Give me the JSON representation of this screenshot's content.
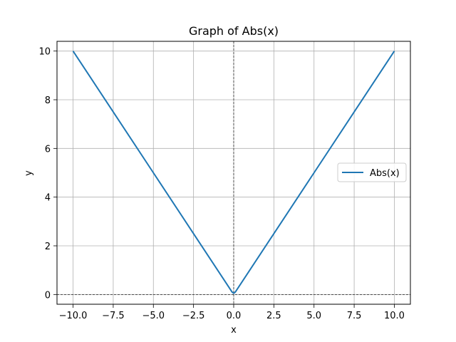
{
  "chart_data": {
    "type": "line",
    "title": "Graph of Abs(x)",
    "xlabel": "x",
    "ylabel": "y",
    "xlim": [
      -11,
      11
    ],
    "ylim": [
      -0.4,
      10.4
    ],
    "xticks": [
      -10.0,
      -7.5,
      -5.0,
      -2.5,
      0.0,
      2.5,
      5.0,
      7.5,
      10.0
    ],
    "xtick_labels": [
      "−10.0",
      "−7.5",
      "−5.0",
      "−2.5",
      "0.0",
      "2.5",
      "5.0",
      "7.5",
      "10.0"
    ],
    "yticks": [
      0,
      2,
      4,
      6,
      8,
      10
    ],
    "ytick_labels": [
      "0",
      "2",
      "4",
      "6",
      "8",
      "10"
    ],
    "grid": true,
    "legend_position": "right",
    "reference_lines": {
      "x": 0,
      "y": 0,
      "style": "dashed"
    },
    "series": [
      {
        "name": "Abs(x)",
        "color": "#1f77b4",
        "x": [
          -10,
          -7.5,
          -5,
          -2.5,
          -0.1,
          0,
          0.1,
          2.5,
          5,
          7.5,
          10
        ],
        "y": [
          10,
          7.5,
          5,
          2.5,
          0.1,
          0.05,
          0.1,
          2.5,
          5,
          7.5,
          10
        ]
      }
    ]
  }
}
